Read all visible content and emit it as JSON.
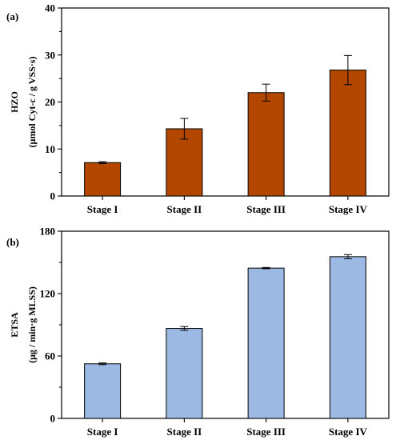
{
  "chart_data": [
    {
      "type": "bar",
      "panel_label": "(a)",
      "categories": [
        "Stage I",
        "Stage II",
        "Stage III",
        "Stage IV"
      ],
      "values": [
        7.1,
        14.3,
        22.0,
        26.8
      ],
      "errors": [
        0.2,
        2.2,
        1.8,
        3.1
      ],
      "ylabel_line1": "HZO",
      "ylabel_line2": "(μmol Cyt-c / g VSS·s)",
      "ylim": [
        0,
        40
      ],
      "yticks": [
        0,
        10,
        20,
        30,
        40
      ],
      "bar_color": "#b34700",
      "grid": false
    },
    {
      "type": "bar",
      "panel_label": "(b)",
      "categories": [
        "Stage I",
        "Stage II",
        "Stage III",
        "Stage IV"
      ],
      "values": [
        52.5,
        86.5,
        144.5,
        155.5
      ],
      "errors": [
        0.8,
        1.8,
        0.6,
        2.0
      ],
      "ylabel_line1": "ETSA",
      "ylabel_line2": "(μg / min·g MLSS)",
      "ylim": [
        0,
        180
      ],
      "yticks": [
        0,
        60,
        120,
        180
      ],
      "bar_color": "#9bb9e3",
      "grid": false
    }
  ]
}
